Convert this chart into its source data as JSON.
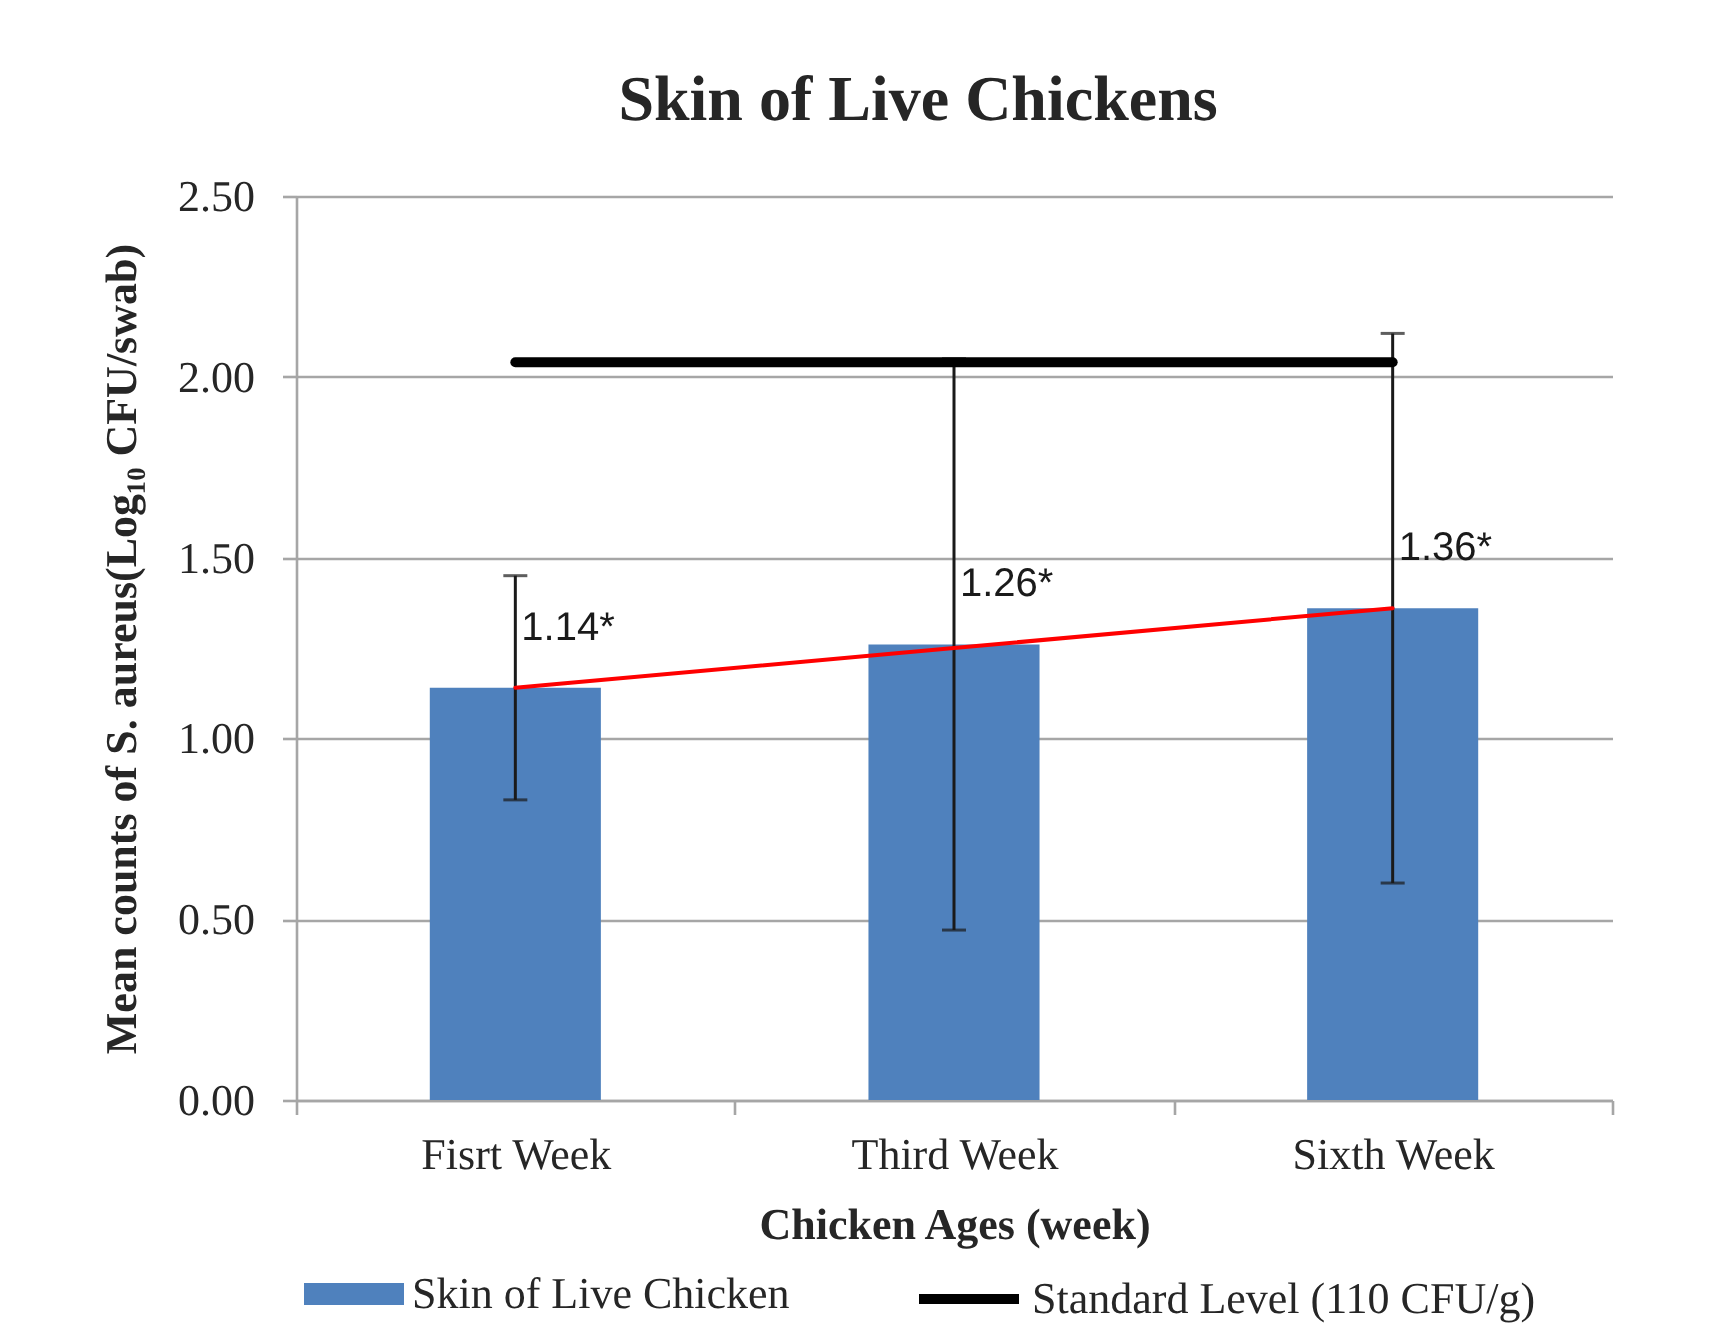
{
  "chart_data": {
    "type": "bar",
    "title": "Skin of Live Chickens",
    "xlabel": "Chicken Ages (week)",
    "ylabel": "Mean counts of S. aureus(Log₁₀ CFU/swab)",
    "categories": [
      "Fisrt Week",
      "Third Week",
      "Sixth Week"
    ],
    "series": [
      {
        "name": "Skin of Live Chicken",
        "color": "#4f81bd",
        "values": [
          1.14,
          1.26,
          1.36
        ],
        "errors": [
          0.31,
          0.79,
          0.76
        ],
        "value_labels": [
          "1.14*",
          "1.26*",
          "1.36*"
        ]
      },
      {
        "name": "Standard Level (110 CFU/g)",
        "type": "line",
        "color": "#000000",
        "values": [
          2.04,
          2.04,
          2.04
        ],
        "line_style": "solid"
      },
      {
        "type": "line",
        "color": "#ff0000",
        "values": [
          1.14,
          1.25,
          1.36
        ],
        "line_style": "solid"
      }
    ],
    "ylim": [
      0,
      2.5
    ],
    "yticks": [
      {
        "value": 0,
        "label": "0.00"
      },
      {
        "value": 0.5,
        "label": "0.50"
      },
      {
        "value": 1,
        "label": "1.00"
      },
      {
        "value": 1.5,
        "label": "1.50"
      },
      {
        "value": 2,
        "label": "2.00"
      },
      {
        "value": 2.5,
        "label": "2.50"
      }
    ],
    "grid": "y",
    "legend": "bottom"
  }
}
